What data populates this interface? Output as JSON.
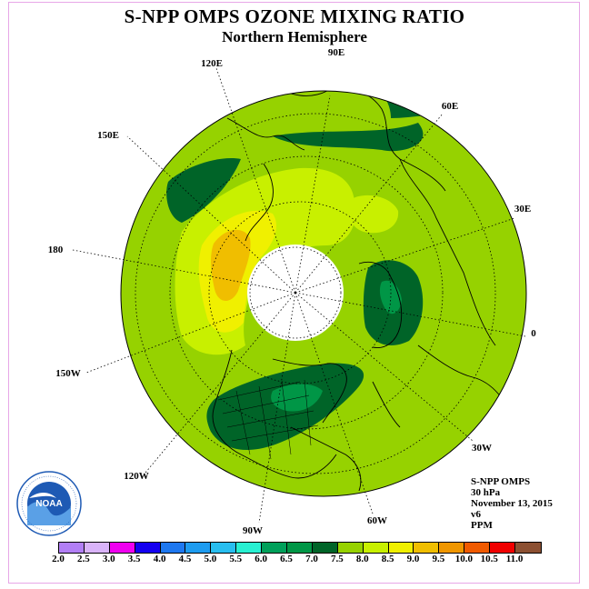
{
  "header": {
    "title": "S-NPP OMPS OZONE MIXING RATIO",
    "subtitle": "Northern Hemisphere"
  },
  "longitude_labels": [
    "90E",
    "60E",
    "30E",
    "0",
    "30W",
    "60W",
    "90W",
    "120W",
    "150W",
    "180",
    "150E",
    "120E"
  ],
  "info": {
    "instrument": "S-NPP OMPS",
    "level": "30 hPa",
    "date": "November 13, 2015",
    "version": "v6",
    "units": "PPM"
  },
  "logo": {
    "text": "NOAA",
    "ring_text": "NATIONAL OCEANIC AND ATMOSPHERIC ADMINISTRATION · U.S. DEPARTMENT OF COMMERCE"
  },
  "colorbar": {
    "labels": [
      "2.0",
      "2.5",
      "3.0",
      "3.5",
      "4.0",
      "4.5",
      "5.0",
      "5.5",
      "6.0",
      "6.5",
      "7.0",
      "7.5",
      "8.0",
      "8.5",
      "9.0",
      "9.5",
      "10.0",
      "10.5",
      "11.0"
    ],
    "colors": [
      "#b27ff5",
      "#d9b3f9",
      "#f000f0",
      "#1400f0",
      "#1e78f0",
      "#1e9cf0",
      "#28beef",
      "#28f0d2",
      "#00a05a",
      "#009646",
      "#006428",
      "#96d200",
      "#c8f000",
      "#f0f000",
      "#f0be00",
      "#f09600",
      "#f05a00",
      "#f00000",
      "#8c5032"
    ]
  }
}
